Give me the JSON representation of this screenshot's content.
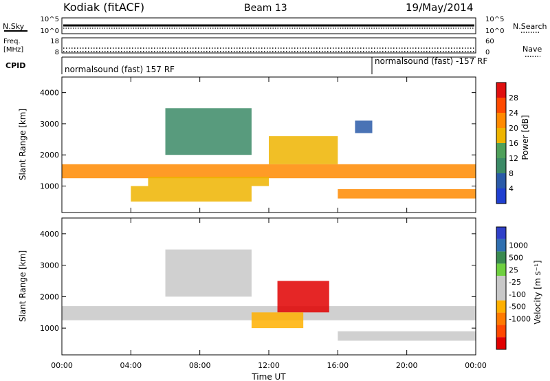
{
  "header": {
    "station": "Kodiak (fitACF)",
    "beam": "Beam 13",
    "date": "19/May/2014"
  },
  "panel_labels": {
    "nsky": "N.Sky",
    "nsearch": "N.Search",
    "freq_line1": "Freq.",
    "freq_line2": "[MHz]",
    "nave": "Nave",
    "cpid": "CPID"
  },
  "noise_axis": {
    "top": "10^5",
    "bottom": "10^0"
  },
  "freq_axis": {
    "left_top": "18",
    "left_bottom": "8",
    "right_top": "60",
    "right_bottom": "0"
  },
  "cpid_segments": [
    {
      "label": "normalsound (fast) 157 RF",
      "start_hour": 0
    },
    {
      "label": "normalsound (fast) -157 RF",
      "start_hour": 18
    }
  ],
  "power_colorbar": {
    "label": "Power [dB]",
    "ticks": [
      "4",
      "8",
      "12",
      "16",
      "20",
      "24",
      "28"
    ]
  },
  "velocity_colorbar": {
    "label": "Velocity [m s⁻¹]",
    "ticks": [
      "1000",
      "500",
      "25",
      "-25",
      "-100",
      "-500",
      "-1000"
    ]
  },
  "colors": {
    "power": [
      "#1f3fd0",
      "#2a5aa8",
      "#3b8a66",
      "#4fa05a",
      "#eeb400",
      "#ff8a00",
      "#ff4a00",
      "#e01010"
    ],
    "velocity": [
      "#2f40c8",
      "#2f6fb0",
      "#3a8a50",
      "#6fd040",
      "#c8c8c8",
      "#c8c8c8",
      "#ffb000",
      "#ff7a00",
      "#ff4800",
      "#e00000"
    ]
  },
  "chart_data": [
    {
      "type": "heatmap",
      "name": "power",
      "ylabel": "Slant Range [km]",
      "ylim": [
        150,
        4500
      ],
      "yticks": [
        "1000",
        "2000",
        "3000",
        "4000"
      ],
      "xlim": [
        0,
        24
      ],
      "bands": [
        {
          "range_km": [
            1250,
            1700
          ],
          "start_hour": 0,
          "end_hour": 24,
          "level": 5
        },
        {
          "range_km": [
            1000,
            1300
          ],
          "start_hour": 5,
          "end_hour": 12,
          "level": 4
        },
        {
          "range_km": [
            1700,
            2600
          ],
          "start_hour": 12,
          "end_hour": 16,
          "level": 4
        },
        {
          "range_km": [
            2000,
            3500
          ],
          "start_hour": 6,
          "end_hour": 11,
          "level": 2
        },
        {
          "range_km": [
            500,
            1000
          ],
          "start_hour": 4,
          "end_hour": 11,
          "level": 4
        },
        {
          "range_km": [
            600,
            900
          ],
          "start_hour": 16,
          "end_hour": 24,
          "level": 5
        },
        {
          "range_km": [
            2700,
            3100
          ],
          "start_hour": 17,
          "end_hour": 18,
          "level": 1
        }
      ]
    },
    {
      "type": "heatmap",
      "name": "velocity",
      "ylabel": "Slant Range [km]",
      "ylim": [
        150,
        4500
      ],
      "yticks": [
        "1000",
        "2000",
        "3000",
        "4000"
      ],
      "xlim": [
        0,
        24
      ],
      "xticks": [
        "00:00",
        "04:00",
        "08:00",
        "12:00",
        "16:00",
        "20:00",
        "00:00"
      ],
      "xlabel": "Time UT",
      "bands": [
        {
          "range_km": [
            1250,
            1700
          ],
          "start_hour": 0,
          "end_hour": 24,
          "level": 4
        },
        {
          "range_km": [
            1500,
            2500
          ],
          "start_hour": 12.5,
          "end_hour": 15.5,
          "level": 9
        },
        {
          "range_km": [
            1000,
            1500
          ],
          "start_hour": 11,
          "end_hour": 14,
          "level": 6
        },
        {
          "range_km": [
            600,
            900
          ],
          "start_hour": 16,
          "end_hour": 24,
          "level": 4
        },
        {
          "range_km": [
            2000,
            3500
          ],
          "start_hour": 6,
          "end_hour": 11,
          "level": 4
        }
      ]
    }
  ]
}
